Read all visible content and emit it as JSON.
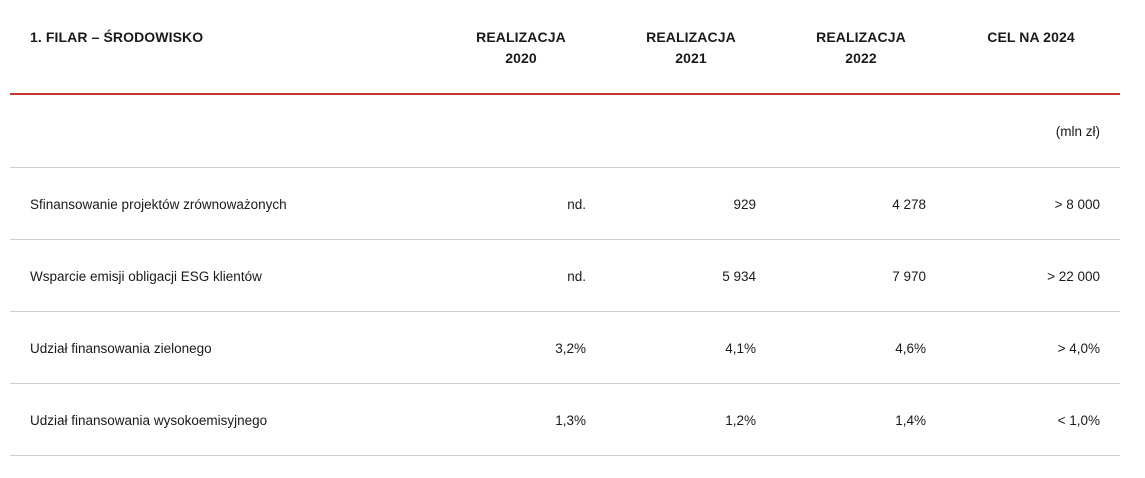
{
  "header": {
    "title": "1. FILAR – ŚRODOWISKO",
    "columns": [
      {
        "line1": "REALIZACJA",
        "line2": "2020"
      },
      {
        "line1": "REALIZACJA",
        "line2": "2021"
      },
      {
        "line1": "REALIZACJA",
        "line2": "2022"
      },
      {
        "line1": "CEL NA 2024",
        "line2": ""
      }
    ]
  },
  "unit": "(mln zł)",
  "rows": [
    {
      "label": "Sfinansowanie projektów zrównoważonych",
      "v2020": "nd.",
      "v2021": "929",
      "v2022": "4 278",
      "target": "> 8 000"
    },
    {
      "label": "Wsparcie emisji obligacji ESG klientów",
      "v2020": "nd.",
      "v2021": "5 934",
      "v2022": "7 970",
      "target": "> 22 000"
    },
    {
      "label": "Udział finansowania zielonego",
      "v2020": "3,2%",
      "v2021": "4,1%",
      "v2022": "4,6%",
      "target": "> 4,0%"
    },
    {
      "label": "Udział finansowania wysokoemisyjnego",
      "v2020": "1,3%",
      "v2021": "1,2%",
      "v2022": "1,4%",
      "target": "< 1,0%"
    }
  ],
  "colors": {
    "accent_rule": "#c0392b",
    "divider": "#d0d0d0"
  }
}
